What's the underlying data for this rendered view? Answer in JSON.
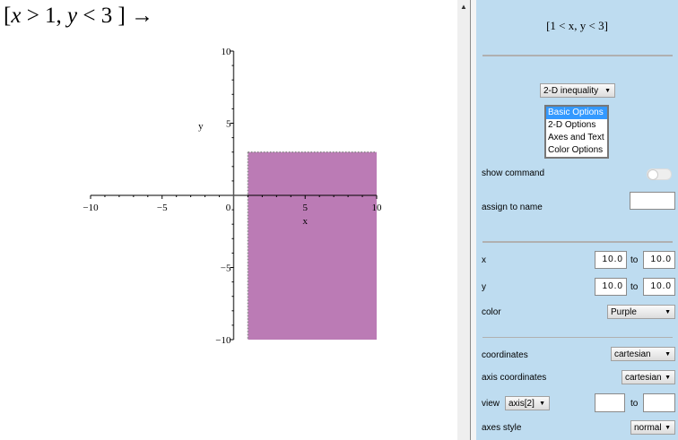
{
  "document": {
    "input_expression": {
      "open": "[",
      "x": "x",
      "gt": " > 1, ",
      "y": "y",
      "lt": " < 3",
      "close": " ]",
      "arrow": " →"
    }
  },
  "chart_data": {
    "type": "area",
    "title": "",
    "xlabel": "x",
    "ylabel": "y",
    "xlim": [
      -10,
      10
    ],
    "ylim": [
      -10,
      10
    ],
    "xticks": [
      "−10",
      "−5",
      "0",
      "5",
      "10"
    ],
    "yticks": [
      "10",
      "5",
      "−5",
      "−10"
    ],
    "grid": false,
    "region": {
      "x": [
        1,
        10
      ],
      "y": [
        -10,
        3
      ],
      "boundary_style": "dotted"
    },
    "fill_color": "#bb7bb5"
  },
  "panel": {
    "output_expression": "[1 < x, y < 3]",
    "plot_type": "2-D inequality",
    "option_tabs": [
      "Basic Options",
      "2-D Options",
      "Axes and Text",
      "Color Options"
    ],
    "selected_tab": "Basic Options",
    "show_command_label": "show command",
    "show_command_on": false,
    "assign_label": "assign to name",
    "assign_value": "",
    "x_label": "x",
    "x_from": "10.0",
    "x_to": "10.0",
    "to_label": "to",
    "y_label": "y",
    "y_from": "10.0",
    "y_to": "10.0",
    "color_label": "color",
    "color_value": "Purple",
    "coordinates_label": "coordinates",
    "coordinates_value": "cartesian",
    "axis_coordinates_label": "axis coordinates",
    "axis_coordinates_value": "cartesian",
    "view_label": "view",
    "view_axis": "axis[2]",
    "view_from": "",
    "view_to": "",
    "axes_style_label": "axes style",
    "axes_style_value": "normal"
  }
}
